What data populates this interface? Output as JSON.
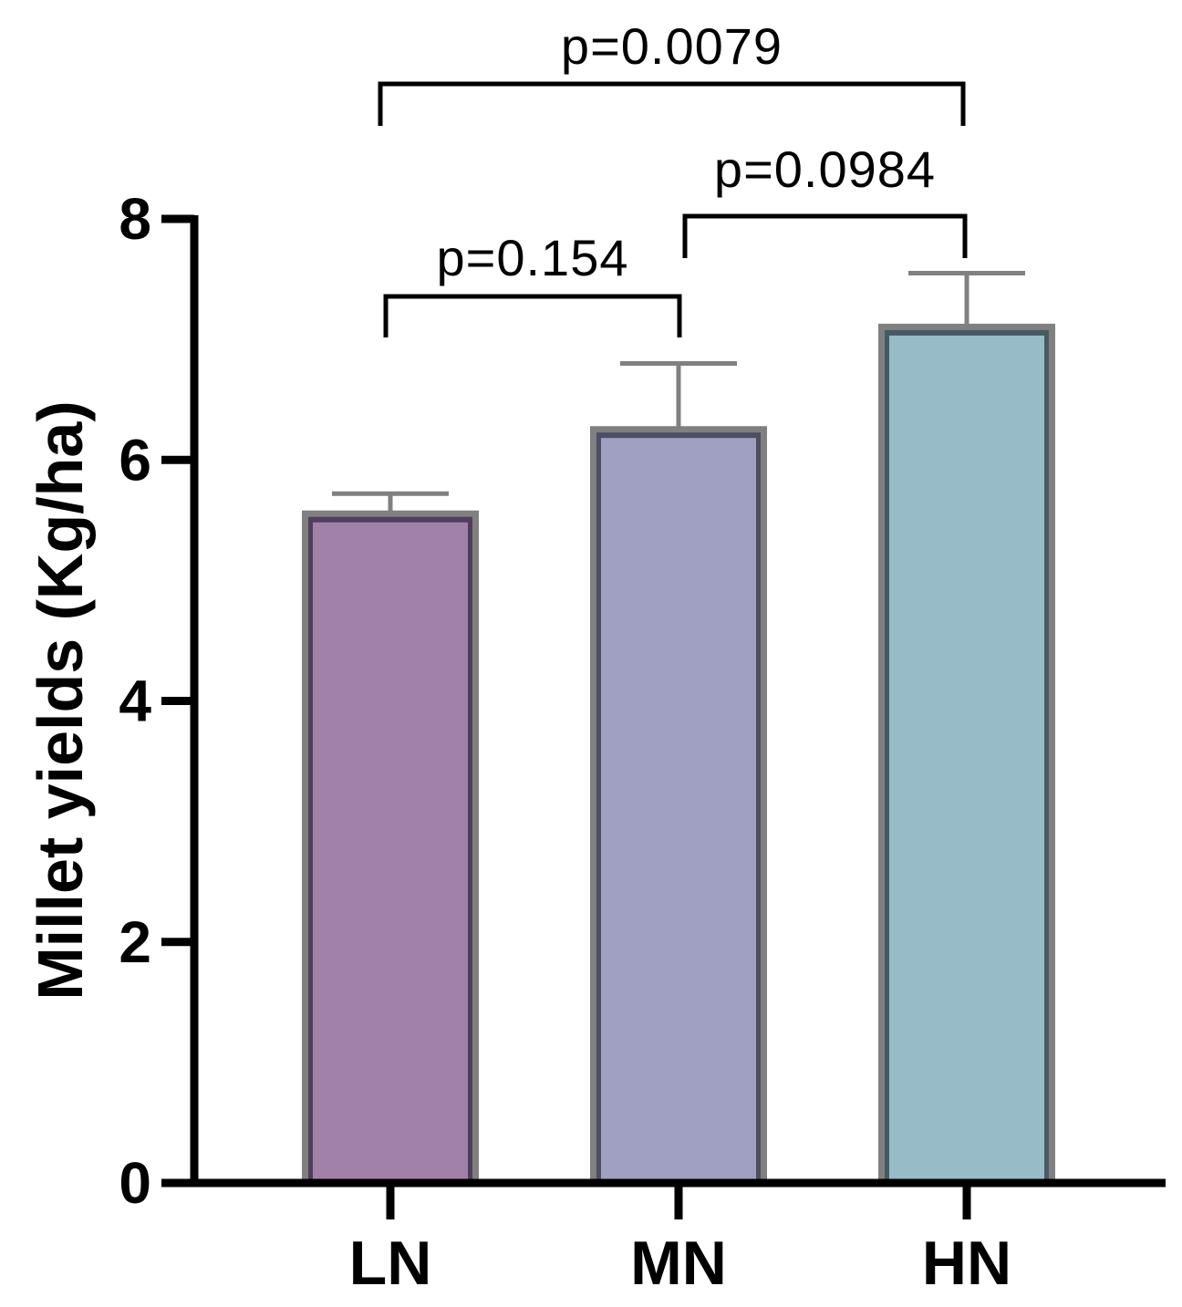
{
  "chart_data": {
    "type": "bar",
    "title": "",
    "xlabel": "",
    "ylabel": "Millet yields (Kg/ha)",
    "ylim": [
      0,
      8
    ],
    "yticks": [
      0,
      2,
      4,
      6,
      8
    ],
    "ytick_labels": [
      "0",
      "2",
      "4",
      "6",
      "8"
    ],
    "categories": [
      "LN",
      "MN",
      "HN"
    ],
    "values": [
      5.55,
      6.25,
      7.1
    ],
    "errors": [
      0.17,
      0.55,
      0.45
    ],
    "colors": {
      "LN": "#a180aa",
      "MN": "#a0a0c2",
      "HN": "#97bbc7"
    },
    "bar_edge_colors": {
      "LN": "#4f3f5e",
      "MN": "#4e4e62",
      "HN": "#475a62"
    },
    "error_bar_color": "#808080",
    "comparisons": [
      {
        "from": "LN",
        "to": "MN",
        "label": "p=0.154"
      },
      {
        "from": "MN",
        "to": "HN",
        "label": "p=0.0984"
      },
      {
        "from": "LN",
        "to": "HN",
        "label": "p=0.0079"
      }
    ]
  }
}
